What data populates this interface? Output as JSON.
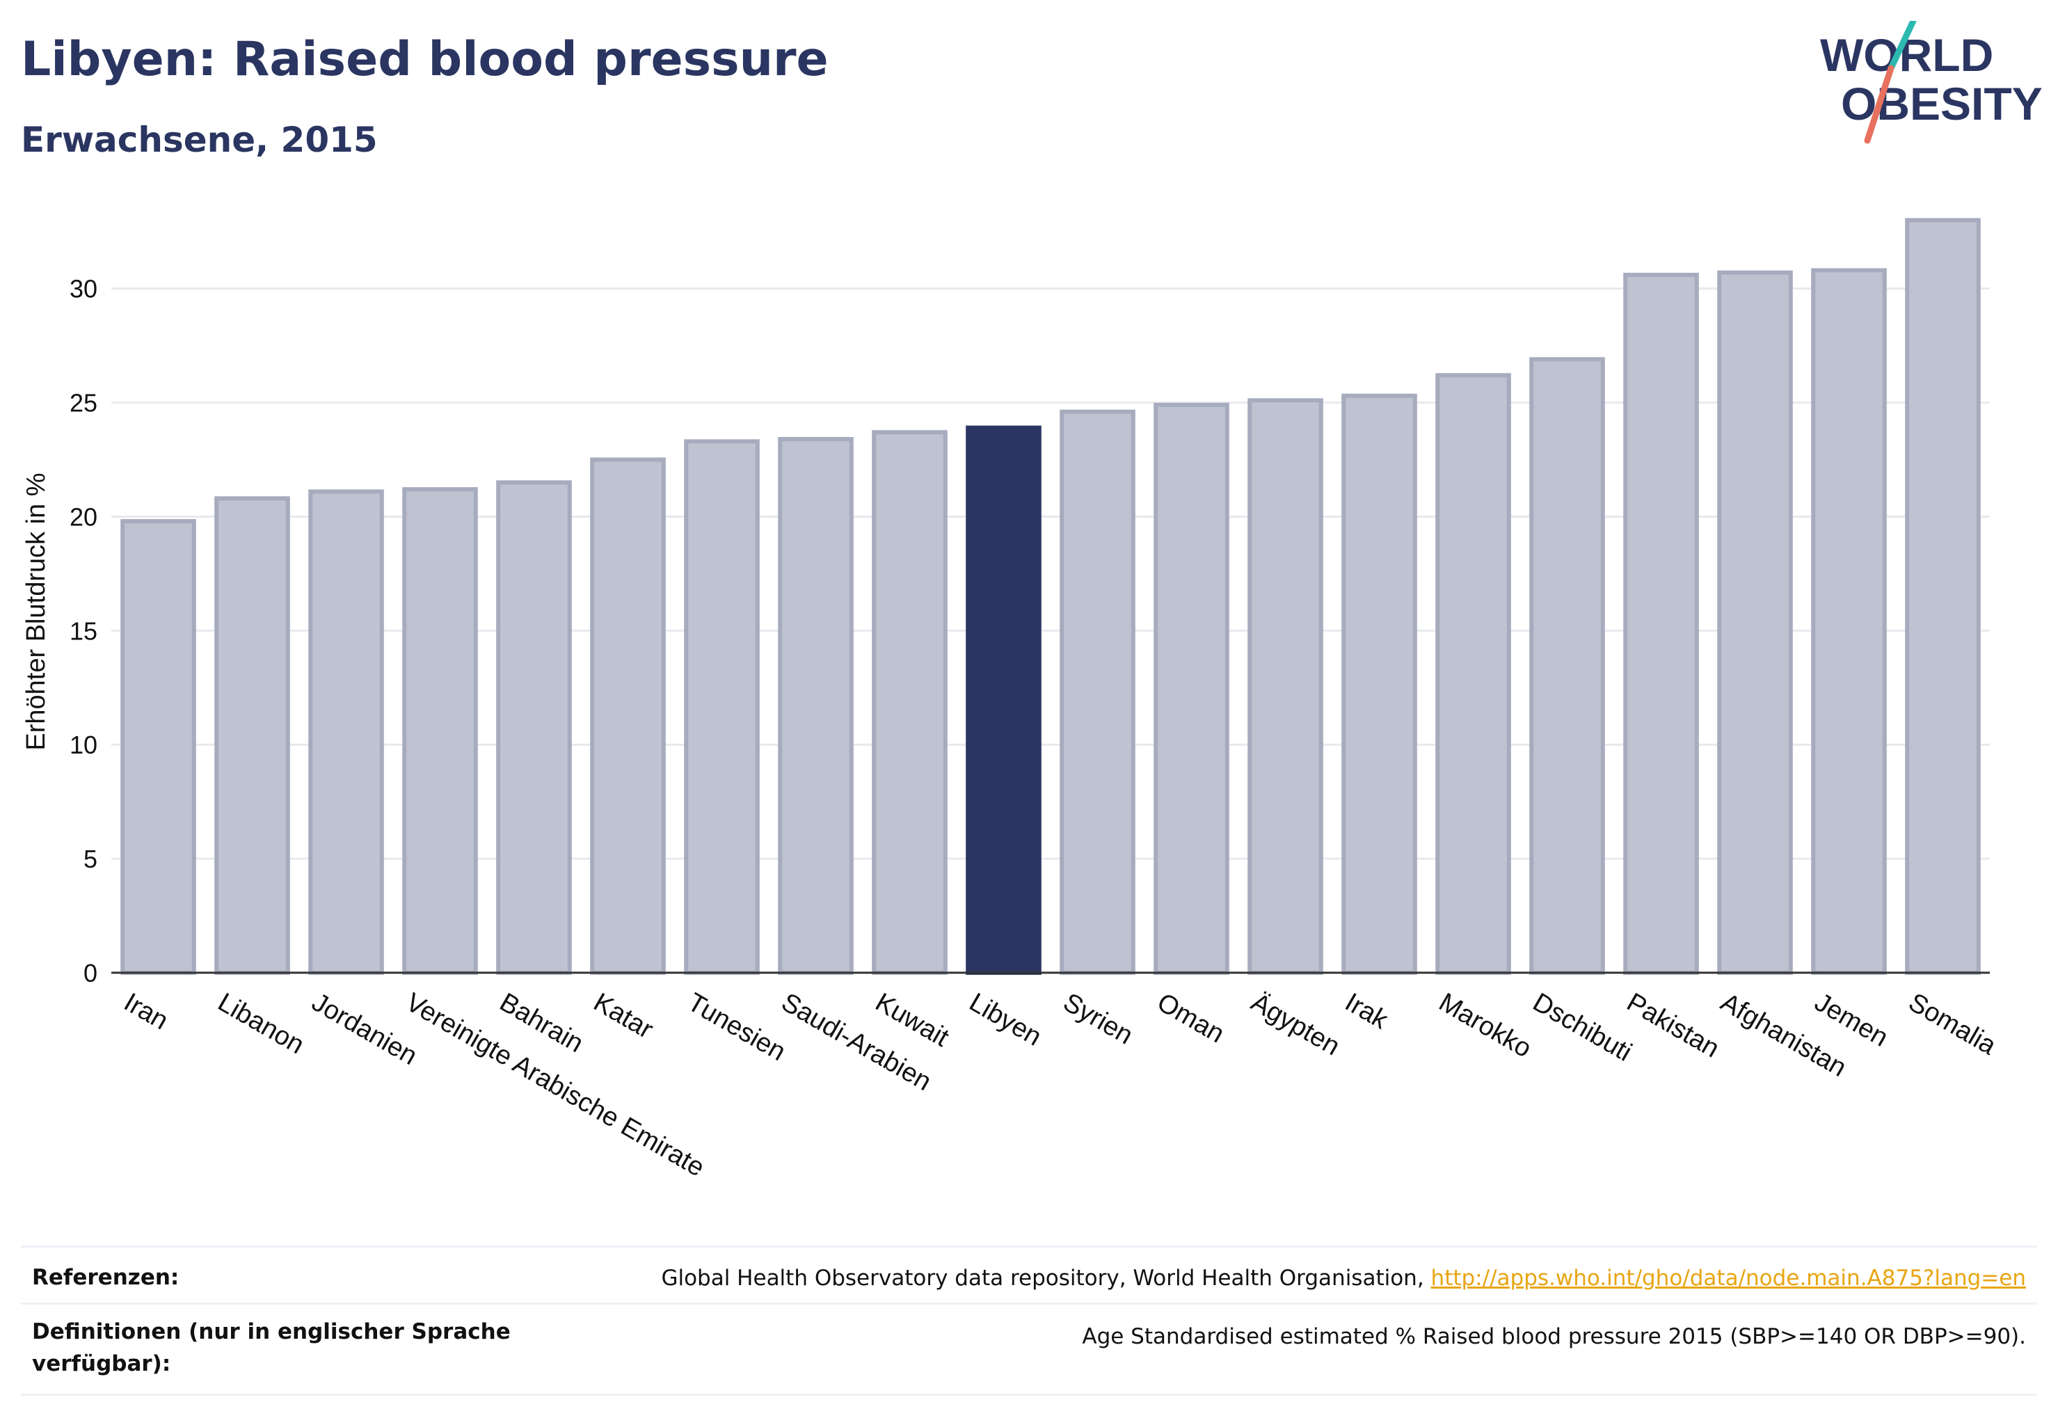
{
  "header": {
    "title": "Libyen: Raised blood pressure",
    "subtitle": "Erwachsene, 2015"
  },
  "logo": {
    "line1": "WORLD",
    "line2": "OBESITY",
    "colors": {
      "text": "#2b3561",
      "slash_teal": "#2bb9b0",
      "slash_coral": "#e8705f"
    }
  },
  "chart_data": {
    "type": "bar",
    "ylabel": "Erhöhter Blutdruck in %",
    "xlabel": "",
    "ylim": [
      0,
      33.5
    ],
    "yticks": [
      0,
      5,
      10,
      15,
      20,
      25,
      30
    ],
    "grid": true,
    "highlight": "Libyen",
    "colors": {
      "bar": "#bfc2d0",
      "bar_edge": "#a7abbe",
      "highlight": "#2b3561",
      "grid": "#e8e9ee",
      "axis": "#333333"
    },
    "categories": [
      "Iran",
      "Libanon",
      "Jordanien",
      "Vereinigte Arabische Emirate",
      "Bahrain",
      "Katar",
      "Tunesien",
      "Saudi-Arabien",
      "Kuwait",
      "Libyen",
      "Syrien",
      "Oman",
      "Ägypten",
      "Irak",
      "Marokko",
      "Dschibuti",
      "Pakistan",
      "Afghanistan",
      "Jemen",
      "Somalia"
    ],
    "values": [
      19.8,
      20.8,
      21.1,
      21.2,
      21.5,
      22.5,
      23.3,
      23.4,
      23.7,
      23.9,
      24.6,
      24.9,
      25.1,
      25.3,
      26.2,
      26.9,
      30.6,
      30.7,
      30.8,
      33.0
    ]
  },
  "references": {
    "label": "Referenzen:",
    "text": "Global Health Observatory data repository, World Health Organisation,",
    "link": "http://apps.who.int/gho/data/node.main.A875?lang=en"
  },
  "definitions": {
    "label": "Definitionen (nur in englischer Sprache verfügbar):",
    "text": "Age Standardised estimated % Raised blood pressure 2015 (SBP>=140 OR DBP>=90)."
  }
}
